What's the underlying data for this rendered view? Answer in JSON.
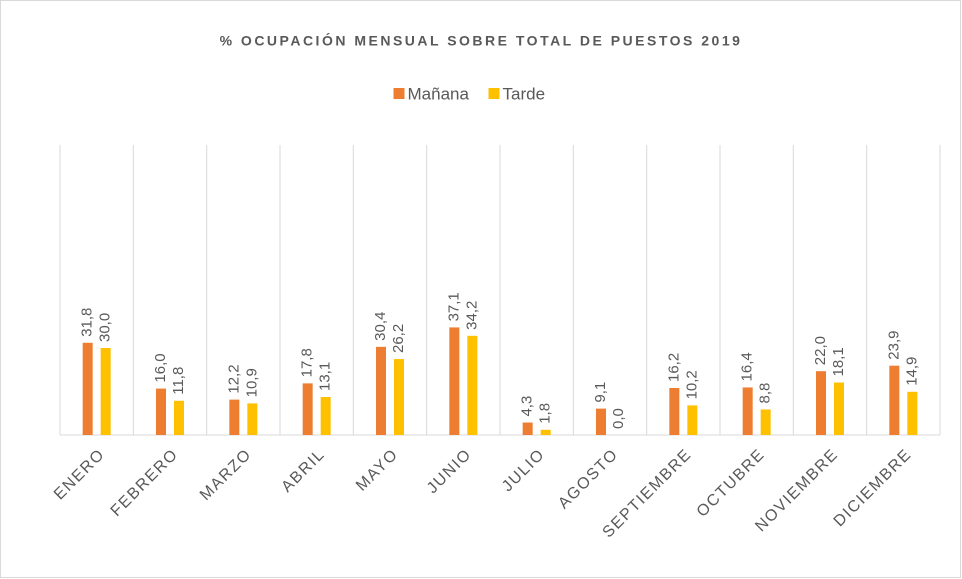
{
  "chart_data": {
    "type": "bar",
    "title": "% OCUPACIÓN MENSUAL SOBRE TOTAL DE PUESTOS 2019",
    "categories": [
      "ENERO",
      "FEBRERO",
      "MARZO",
      "ABRIL",
      "MAYO",
      "JUNIO",
      "JULIO",
      "AGOSTO",
      "SEPTIEMBRE",
      "OCTUBRE",
      "NOVIEMBRE",
      "DICIEMBRE"
    ],
    "series": [
      {
        "name": "Mañana",
        "color": "#ED7D31",
        "values": [
          31.8,
          16.0,
          12.2,
          17.8,
          30.4,
          37.1,
          4.3,
          9.1,
          16.2,
          16.4,
          22.0,
          23.9
        ],
        "value_labels": [
          "31,8",
          "16,0",
          "12,2",
          "17,8",
          "30,4",
          "37,1",
          "4,3",
          "9,1",
          "16,2",
          "16,4",
          "22,0",
          "23,9"
        ]
      },
      {
        "name": "Tarde",
        "color": "#FFC000",
        "values": [
          30.0,
          11.8,
          10.9,
          13.1,
          26.2,
          34.2,
          1.8,
          0.0,
          10.2,
          8.8,
          18.1,
          14.9
        ],
        "value_labels": [
          "30,0",
          "11,8",
          "10,9",
          "13,1",
          "26,2",
          "34,2",
          "1,8",
          "0,0",
          "10,2",
          "8,8",
          "18,1",
          "14,9"
        ]
      }
    ],
    "ylim": [
      0,
      100
    ],
    "legend": "top"
  }
}
